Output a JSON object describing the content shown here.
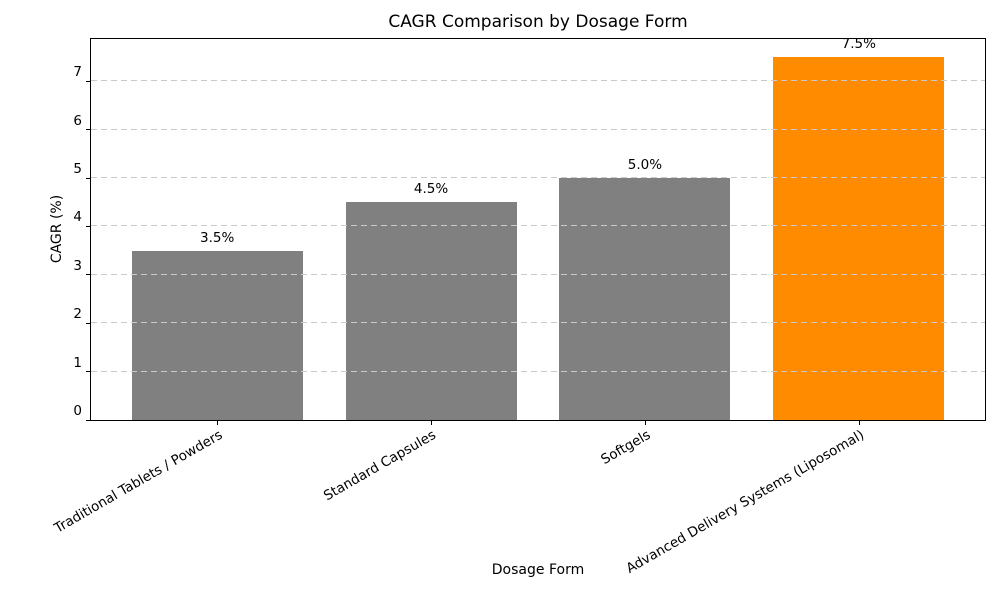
{
  "chart_data": {
    "type": "bar",
    "title": "CAGR Comparison by Dosage Form",
    "xlabel": "Dosage Form",
    "ylabel": "CAGR (%)",
    "categories": [
      "Traditional Tablets / Powders",
      "Standard Capsules",
      "Softgels",
      "Advanced Delivery Systems (Liposomal)"
    ],
    "values": [
      3.5,
      4.5,
      5.0,
      7.5
    ],
    "value_labels": [
      "3.5%",
      "4.5%",
      "5.0%",
      "7.5%"
    ],
    "bar_colors": [
      "#808080",
      "#808080",
      "#808080",
      "#ff8c00"
    ],
    "yticks": [
      0,
      1,
      2,
      3,
      4,
      5,
      6,
      7
    ],
    "ylim": [
      0,
      7.875
    ],
    "xlim_units": 4.18,
    "bar_width_units": 0.8,
    "first_bar_center_offset_units": 0.59,
    "x_tick_rotation_deg": 30,
    "grid": {
      "axis": "y",
      "style": "dashed",
      "color": "#c9c9c9",
      "drawn_above_bars": true
    },
    "legend_position": "none",
    "colors": {
      "bar_default": "#808080",
      "bar_highlight": "#ff8c00",
      "grid": "#c9c9c9",
      "spine": "#000000",
      "background": "#ffffff"
    }
  }
}
